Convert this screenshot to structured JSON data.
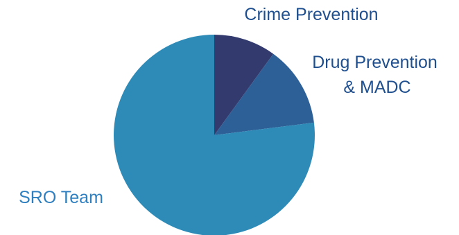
{
  "chart_data": {
    "type": "pie",
    "title": "",
    "slices": [
      {
        "label": "Crime Prevention",
        "value": 10,
        "color": "#323a6e"
      },
      {
        "label": "Drug Prevention & MADC",
        "value": 13,
        "color": "#2e6098"
      },
      {
        "label": "SRO Team",
        "value": 77,
        "color": "#2e8bb8"
      }
    ],
    "start_angle": "12 o'clock",
    "direction": "clockwise",
    "legend": "none",
    "label_color": "#1f5596",
    "label_colors": [
      "#1f4f8f",
      "#1f4f8f",
      "#2e7fc0"
    ]
  }
}
